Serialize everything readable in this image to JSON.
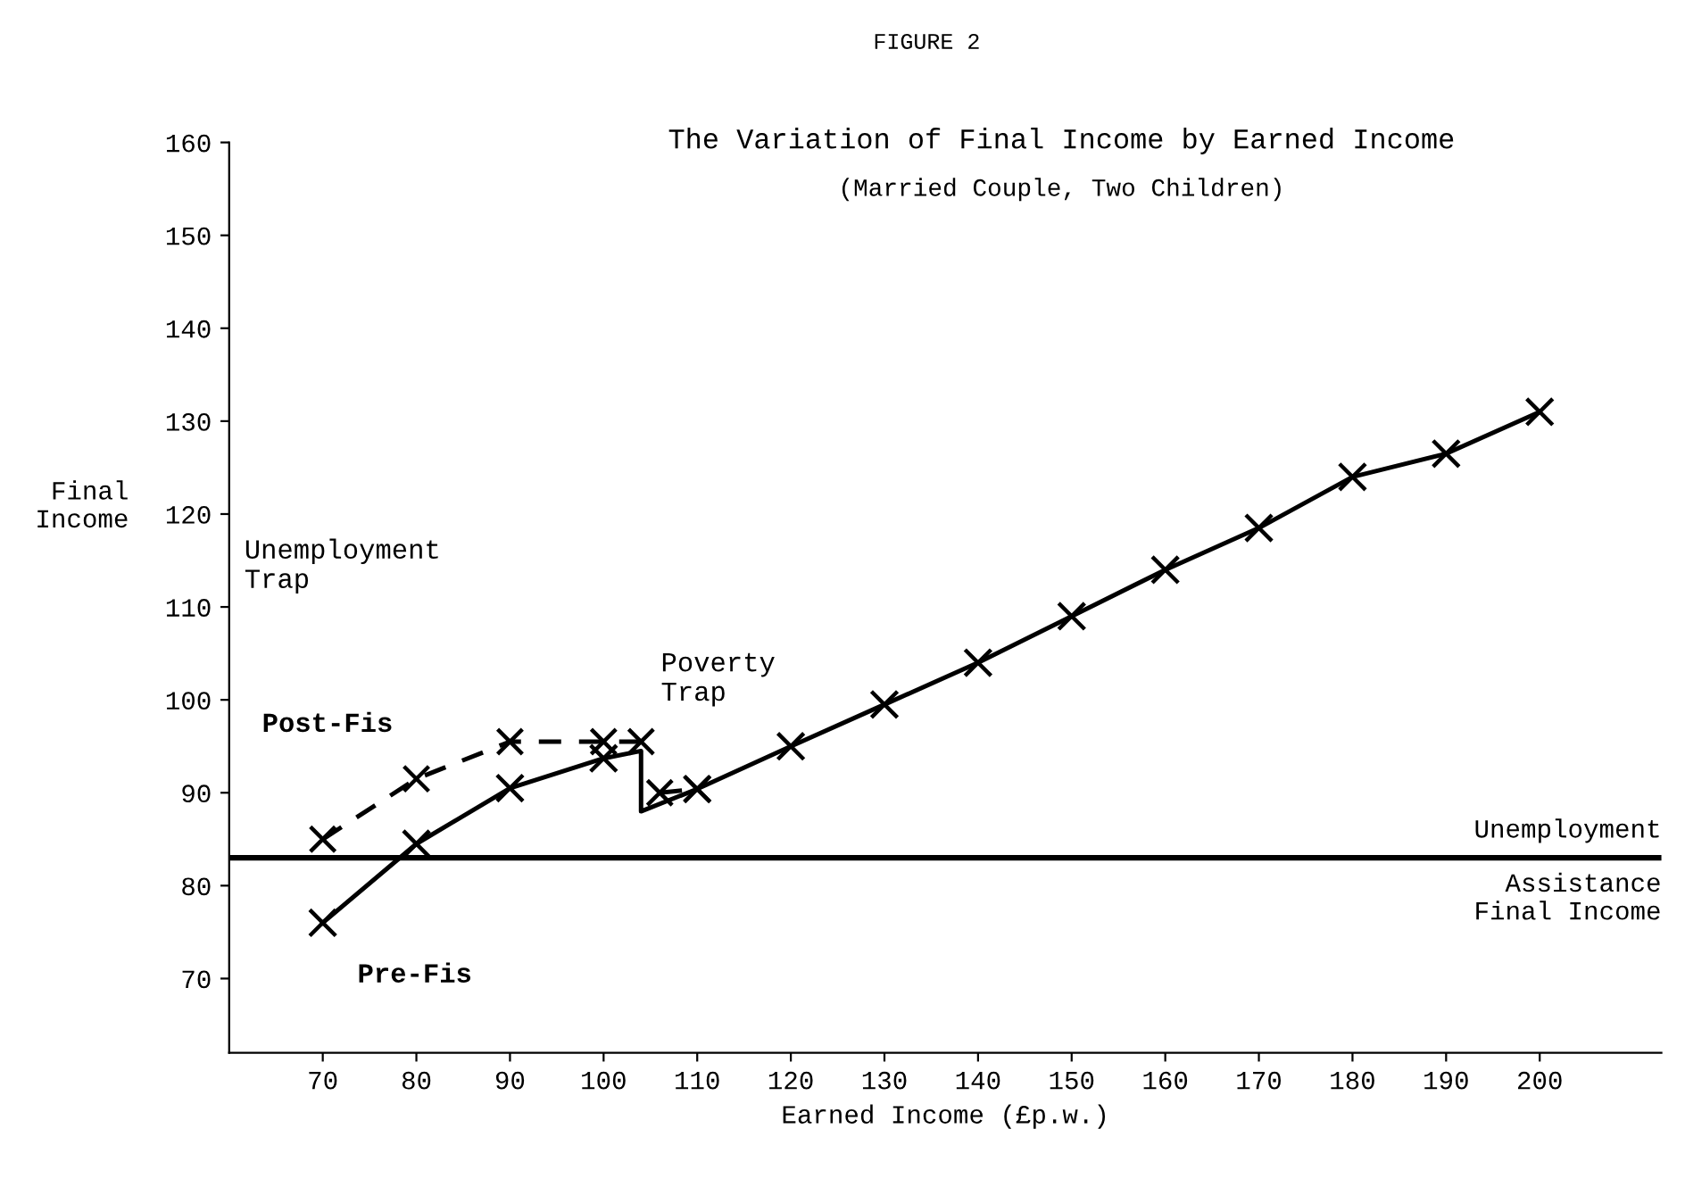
{
  "chart_data": {
    "type": "line",
    "title": "The Variation of Final Income by Earned Income",
    "subtitle": "(Married Couple, Two Children)",
    "xlabel": "Earned Income (£p.w.)",
    "ylabel": "Final\nIncome",
    "xlim": [
      60,
      213
    ],
    "xticks": [
      70,
      80,
      90,
      100,
      110,
      120,
      130,
      140,
      150,
      160,
      170,
      180,
      190,
      200
    ],
    "ylim": [
      62,
      160
    ],
    "yticks": [
      70,
      80,
      90,
      100,
      110,
      120,
      130,
      140,
      150,
      160
    ],
    "grid": false,
    "legend": false,
    "series": [
      {
        "name": "Pre-Fis",
        "color": "#000000",
        "line_style": "solid",
        "marker": "none",
        "x": [
          70,
          80,
          90,
          100,
          104,
          104,
          110,
          120,
          130,
          140,
          150,
          160,
          170,
          180,
          190,
          200
        ],
        "values": [
          76,
          84.5,
          90.5,
          93.7,
          94.5,
          88,
          90.4,
          95,
          99.5,
          104,
          109,
          114,
          118.5,
          124,
          126.5,
          131
        ]
      },
      {
        "type": "scatter",
        "color": "#000000",
        "marker": "cross",
        "x": [
          70,
          80,
          90,
          100,
          110,
          120,
          130,
          140,
          150,
          160,
          170,
          180,
          190,
          200
        ],
        "values": [
          76,
          84.5,
          90.5,
          93.7,
          90.4,
          95,
          99.5,
          104,
          109,
          114,
          118.5,
          124,
          126.5,
          131
        ]
      },
      {
        "name": "Post-Fis",
        "color": "#000000",
        "line_style": "dashed",
        "marker": "cross",
        "x": [
          70,
          80,
          90,
          100,
          104,
          105,
          106,
          110
        ],
        "values": [
          85,
          91.5,
          95.5,
          95.5,
          95.5,
          null,
          90,
          90.4
        ]
      }
    ],
    "ref_lines": [
      {
        "axis": "y",
        "value": 83,
        "label": "Unemployment\nAssistance\nFinal Income",
        "color": "#000000"
      }
    ],
    "annotations": [
      "FIGURE 2",
      "Unemployment\nTrap",
      {
        "text": "Poverty\nTrap",
        "x": 104,
        "y": 94.5
      }
    ]
  }
}
